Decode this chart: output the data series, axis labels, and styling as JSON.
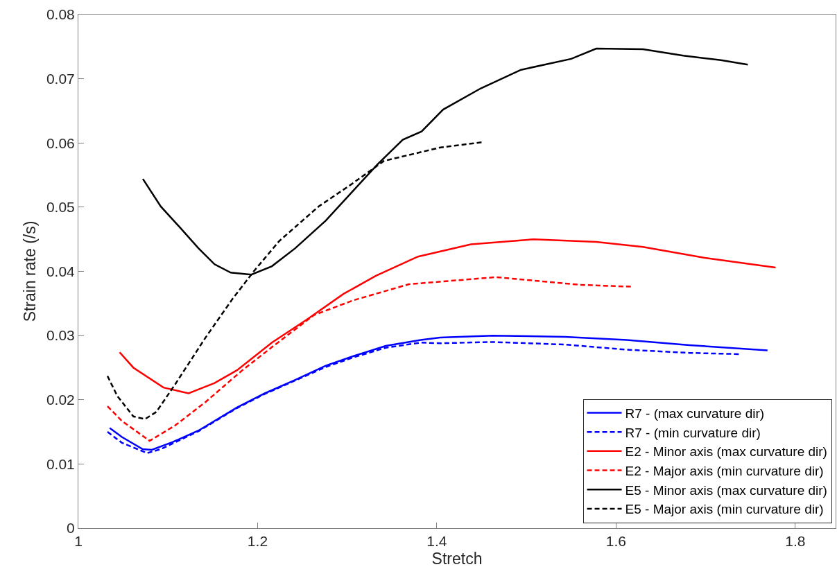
{
  "chart_data": {
    "type": "line",
    "xlabel": "Stretch",
    "ylabel": "Strain rate (/s)",
    "xlim": [
      1,
      1.845
    ],
    "xticks": [
      1,
      1.2,
      1.4,
      1.6,
      1.8
    ],
    "ylim": [
      0,
      0.08
    ],
    "yticks": [
      0,
      0.01,
      0.02,
      0.03,
      0.04,
      0.05,
      0.06,
      0.07,
      0.08
    ],
    "legend": "bottom right",
    "marker": "none",
    "series": [
      {
        "name": "R7 - (max curvature dir)",
        "color": "#0000ff",
        "line_style": "solid",
        "x": [
          1.035,
          1.0486,
          1.0718,
          1.082,
          1.105,
          1.134,
          1.177,
          1.208,
          1.242,
          1.276,
          1.307,
          1.343,
          1.382,
          1.4036,
          1.462,
          1.543,
          1.612,
          1.682,
          1.769
        ],
        "values": [
          0.0156,
          0.0142,
          0.0123,
          0.0122,
          0.0134,
          0.0152,
          0.0188,
          0.021,
          0.0231,
          0.0253,
          0.0268,
          0.0284,
          0.0293,
          0.0297,
          0.03,
          0.0298,
          0.0293,
          0.0285,
          0.0277
        ]
      },
      {
        "name": "R7 - (min curvature dir)",
        "color": "#0000ff",
        "line_style": "dashed",
        "x": [
          1.0325,
          1.0486,
          1.0767,
          1.092,
          1.134,
          1.177,
          1.208,
          1.242,
          1.276,
          1.307,
          1.343,
          1.382,
          1.4036,
          1.462,
          1.543,
          1.612,
          1.682,
          1.74
        ],
        "values": [
          0.015,
          0.0133,
          0.0117,
          0.0123,
          0.0151,
          0.0187,
          0.0209,
          0.023,
          0.0251,
          0.0266,
          0.0281,
          0.0289,
          0.0288,
          0.029,
          0.0286,
          0.0278,
          0.0273,
          0.0271
        ]
      },
      {
        "name": "E2 - Minor axis (max curvature dir)",
        "color": "#ff0000",
        "line_style": "solid",
        "x": [
          1.046,
          1.0614,
          1.095,
          1.123,
          1.152,
          1.177,
          1.216,
          1.255,
          1.296,
          1.332,
          1.379,
          1.438,
          1.508,
          1.578,
          1.63,
          1.699,
          1.778
        ],
        "values": [
          0.0274,
          0.025,
          0.0219,
          0.021,
          0.0226,
          0.0246,
          0.0289,
          0.0325,
          0.0365,
          0.0393,
          0.0423,
          0.0442,
          0.045,
          0.0446,
          0.0438,
          0.0421,
          0.0406
        ]
      },
      {
        "name": "E2 - Major axis (min curvature dir)",
        "color": "#ff0000",
        "line_style": "dashed",
        "x": [
          1.0325,
          1.0486,
          1.0795,
          1.108,
          1.1415,
          1.183,
          1.216,
          1.263,
          1.307,
          1.369,
          1.466,
          1.56,
          1.619
        ],
        "values": [
          0.019,
          0.0167,
          0.0136,
          0.016,
          0.0196,
          0.0246,
          0.0282,
          0.0332,
          0.0355,
          0.038,
          0.0391,
          0.0379,
          0.0376
        ]
      },
      {
        "name": "E5 - Minor axis (max curvature dir)",
        "color": "#000000",
        "line_style": "solid",
        "x": [
          1.072,
          1.092,
          1.113,
          1.134,
          1.152,
          1.17,
          1.193,
          1.216,
          1.242,
          1.276,
          1.303,
          1.334,
          1.362,
          1.383,
          1.407,
          1.449,
          1.494,
          1.55,
          1.578,
          1.63,
          1.675,
          1.717,
          1.747
        ],
        "values": [
          0.0544,
          0.0501,
          0.0469,
          0.0436,
          0.0411,
          0.0398,
          0.0395,
          0.0408,
          0.0436,
          0.0479,
          0.052,
          0.0567,
          0.0605,
          0.0618,
          0.0652,
          0.0685,
          0.0714,
          0.0731,
          0.0747,
          0.0746,
          0.0736,
          0.0729,
          0.0722
        ]
      },
      {
        "name": "E5 - Major axis (min curvature dir)",
        "color": "#000000",
        "line_style": "dashed",
        "x": [
          1.0325,
          1.0434,
          1.0614,
          1.0744,
          1.087,
          1.108,
          1.1415,
          1.172,
          1.1957,
          1.224,
          1.268,
          1.303,
          1.341,
          1.404,
          1.45
        ],
        "values": [
          0.0237,
          0.0206,
          0.0174,
          0.017,
          0.0181,
          0.0224,
          0.0296,
          0.0357,
          0.04,
          0.0447,
          0.0501,
          0.0534,
          0.0572,
          0.0593,
          0.0601
        ]
      }
    ]
  }
}
